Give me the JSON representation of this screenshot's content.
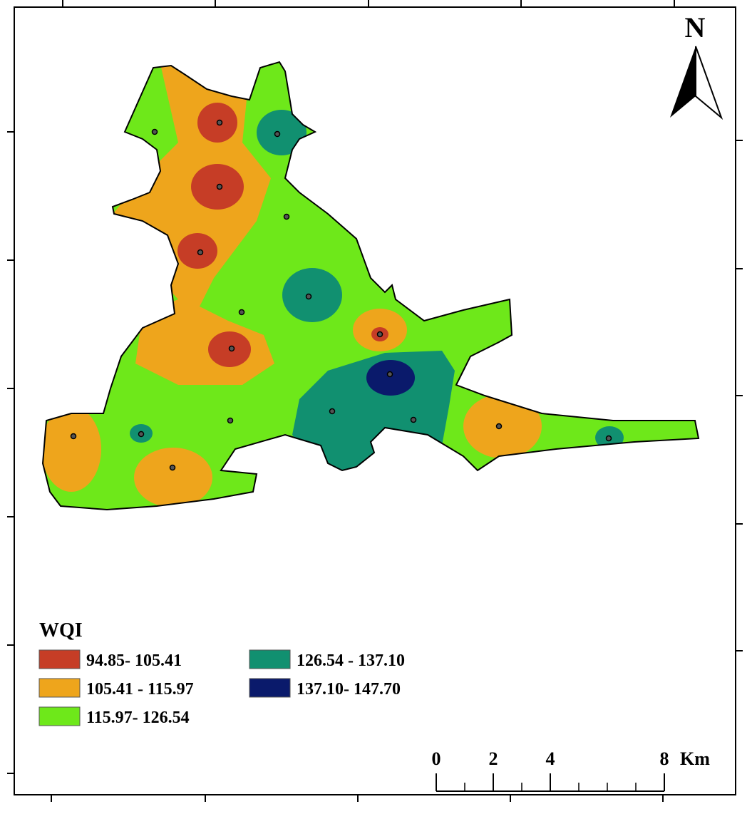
{
  "map": {
    "north_label": "N",
    "legend": {
      "title": "WQI",
      "items": [
        {
          "label": "94.85- 105.41",
          "color": "#c63d26"
        },
        {
          "label": "105.41 - 115.97",
          "color": "#eea51c"
        },
        {
          "label": "115.97- 126.54",
          "color": "#6ee81a"
        },
        {
          "label": "126.54 - 137.10",
          "color": "#119070"
        },
        {
          "label": "137.10- 147.70",
          "color": "#0a1a6b"
        }
      ]
    },
    "scale_bar": {
      "ticks": [
        0,
        2,
        4,
        8
      ],
      "unit": "Km"
    }
  }
}
